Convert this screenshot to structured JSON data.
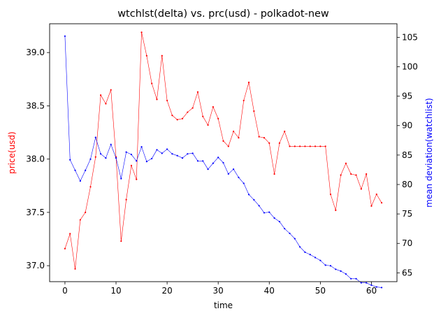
{
  "chart_data": {
    "type": "line",
    "title": "wtchlst(delta) vs. prc(usd) - polkadot-new",
    "xlabel": "time",
    "ylabel_left": "price(usd)",
    "ylabel_right": "mean deviation(watchlist)",
    "xlim": [
      -3,
      65
    ],
    "ylim_left": [
      36.85,
      39.27
    ],
    "ylim_right": [
      63.5,
      107.3
    ],
    "x_ticks": [
      0,
      10,
      20,
      30,
      40,
      50,
      60
    ],
    "y_ticks_left": [
      37.0,
      37.5,
      38.0,
      38.5,
      39.0
    ],
    "y_ticks_right": [
      65,
      70,
      75,
      80,
      85,
      90,
      95,
      100,
      105
    ],
    "grid": false,
    "x": [
      0,
      1,
      2,
      3,
      4,
      5,
      6,
      7,
      8,
      9,
      10,
      11,
      12,
      13,
      14,
      15,
      16,
      17,
      18,
      19,
      20,
      21,
      22,
      23,
      24,
      25,
      26,
      27,
      28,
      29,
      30,
      31,
      32,
      33,
      34,
      35,
      36,
      37,
      38,
      39,
      40,
      41,
      42,
      43,
      44,
      45,
      46,
      47,
      48,
      49,
      50,
      51,
      52,
      53,
      54,
      55,
      56,
      57,
      58,
      59,
      60,
      61,
      62
    ],
    "series": [
      {
        "name": "price(usd)",
        "axis": "left",
        "color": "#ff0000",
        "values": [
          37.16,
          37.3,
          36.97,
          37.43,
          37.5,
          37.74,
          38.02,
          38.6,
          38.52,
          38.65,
          38.02,
          37.23,
          37.62,
          37.94,
          37.81,
          39.19,
          38.97,
          38.71,
          38.56,
          38.97,
          38.55,
          38.41,
          38.37,
          38.38,
          38.44,
          38.48,
          38.63,
          38.4,
          38.32,
          38.49,
          38.38,
          38.17,
          38.12,
          38.26,
          38.2,
          38.55,
          38.72,
          38.45,
          38.21,
          38.2,
          38.15,
          37.86,
          38.15,
          38.26,
          38.12,
          38.12,
          38.12,
          38.12,
          38.12,
          38.12,
          38.12,
          38.12,
          37.67,
          37.52,
          37.85,
          37.96,
          37.86,
          37.85,
          37.72,
          37.86,
          37.56,
          37.67,
          37.59
        ]
      },
      {
        "name": "mean deviation(watchlist)",
        "axis": "right",
        "color": "#0000ff",
        "values": [
          105.2,
          84.2,
          82.4,
          80.6,
          82.4,
          84.3,
          88.0,
          85.2,
          84.5,
          86.8,
          84.5,
          81.0,
          85.5,
          85.1,
          84.0,
          86.4,
          83.9,
          84.4,
          85.9,
          85.3,
          86.0,
          85.2,
          84.9,
          84.5,
          85.2,
          85.3,
          84.0,
          84.0,
          82.6,
          83.6,
          84.6,
          83.7,
          81.8,
          82.6,
          81.2,
          80.2,
          78.3,
          77.4,
          76.4,
          75.2,
          75.3,
          74.3,
          73.7,
          72.5,
          71.7,
          70.8,
          69.4,
          68.5,
          68.1,
          67.6,
          67.1,
          66.3,
          66.2,
          65.6,
          65.3,
          64.8,
          64.0,
          64.0,
          63.3,
          63.3,
          62.9,
          62.6,
          62.5
        ]
      }
    ]
  }
}
